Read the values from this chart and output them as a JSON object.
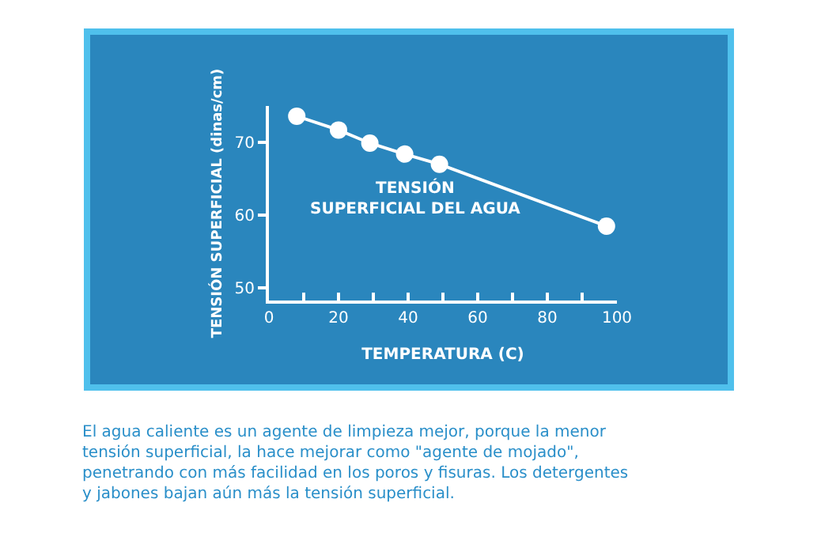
{
  "chart_data": {
    "type": "line",
    "title": "TENSIÓN\nSUPERFICIAL DEL AGUA",
    "xlabel": "TEMPERATURA (C)",
    "ylabel": "TENSIÓN SUPERFICIAL (dinas/cm)",
    "x": [
      8,
      20,
      29,
      39,
      49,
      97
    ],
    "series": [
      {
        "color": "#ffffff",
        "values": [
          73.6,
          71.7,
          69.9,
          68.4,
          67.0,
          58.5
        ]
      }
    ],
    "xlim": [
      0,
      100
    ],
    "ylim": [
      48.3,
      75
    ],
    "xticks": [
      0,
      {
        "value": 10,
        "label": null
      },
      20,
      {
        "value": 30,
        "label": null
      },
      40,
      {
        "value": 50,
        "label": null
      },
      60,
      {
        "value": 70,
        "label": null
      },
      80,
      {
        "value": 90,
        "label": null
      },
      100
    ],
    "yticks": [
      50,
      60,
      70
    ],
    "marker": "circle",
    "line_style": "solid",
    "grid": false,
    "annotations": [
      "El agua caliente es un agente de limpieza mejor, porque la menor\ntensión superficial, la hace mejorar como \"agente de mojado\",\npenetrando con más facilidad en los poros y fisuras. Los detergentes\ny jabones bajan aún más la tensión superficial."
    ]
  }
}
